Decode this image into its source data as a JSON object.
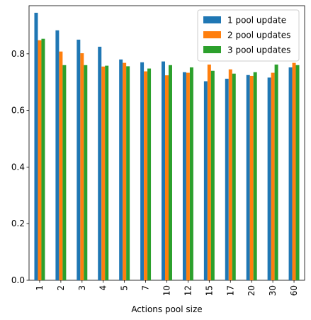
{
  "chart_data": {
    "type": "bar",
    "title": "",
    "xlabel": "Actions pool size",
    "ylabel": "",
    "ylim": [
      0,
      0.97
    ],
    "yticks": [
      0.0,
      0.2,
      0.4,
      0.6,
      0.8
    ],
    "ytick_labels": [
      "0.0",
      "0.2",
      "0.4",
      "0.6",
      "0.8"
    ],
    "categories": [
      "1",
      "2",
      "3",
      "4",
      "5",
      "7",
      "10",
      "12",
      "15",
      "17",
      "20",
      "30",
      "60"
    ],
    "x_tick_rotation": "vertical",
    "legend_position": "top-right",
    "grid": false,
    "series": [
      {
        "name": "1 pool update",
        "color": "#1f77b4",
        "values": [
          0.945,
          0.883,
          0.85,
          0.825,
          0.78,
          0.77,
          0.773,
          0.735,
          0.703,
          0.712,
          0.725,
          0.716,
          0.752
        ]
      },
      {
        "name": "2 pool updates",
        "color": "#ff7f0e",
        "values": [
          0.848,
          0.808,
          0.802,
          0.755,
          0.768,
          0.738,
          0.724,
          0.733,
          0.762,
          0.745,
          0.722,
          0.733,
          0.768
        ]
      },
      {
        "name": "3 pool updates",
        "color": "#2ca02c",
        "values": [
          0.853,
          0.76,
          0.76,
          0.758,
          0.756,
          0.748,
          0.76,
          0.752,
          0.74,
          0.73,
          0.735,
          0.762,
          0.76
        ]
      }
    ]
  }
}
